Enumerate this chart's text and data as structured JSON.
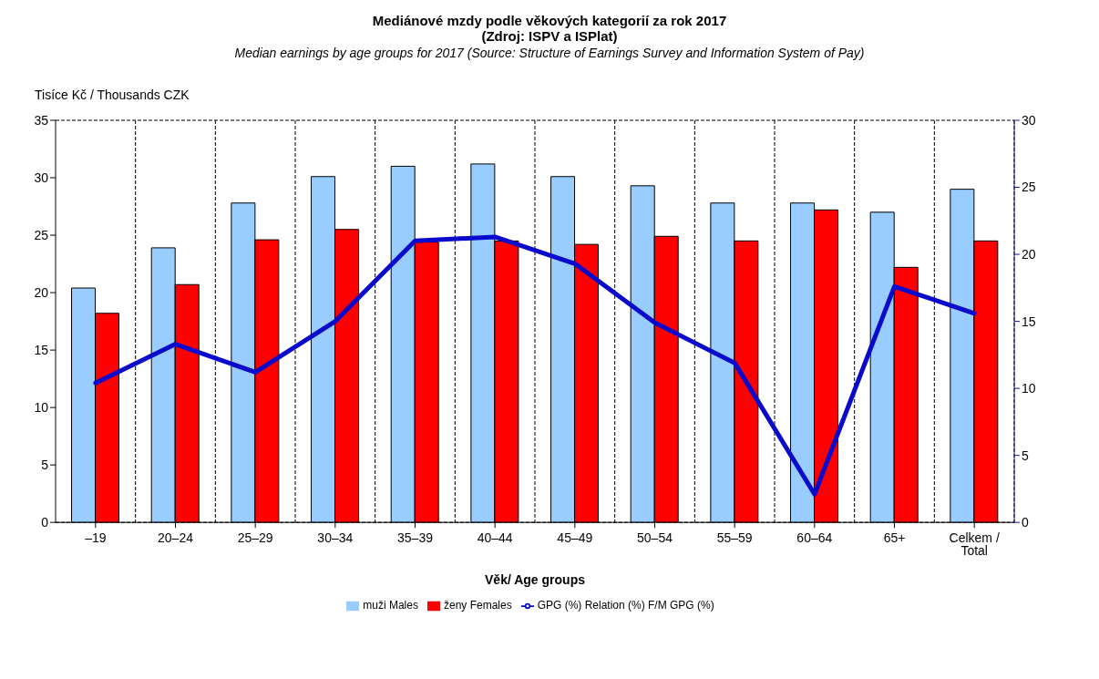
{
  "chart_data": {
    "type": "bar",
    "title": "Mediánové mzdy podle věkových kategorií za rok 2017\n(Zdroj: ISPV a ISPlat)",
    "subtitle": "Median earnings by age groups for 2017 (Source: Structure of Earnings Survey and Information System of Pay)",
    "ylabel": "Tisíce Kč / Thousands CZK",
    "xlabel": "Věk/ Age groups",
    "categories": [
      "–19",
      "20–24",
      "25–29",
      "30–34",
      "35–39",
      "40–44",
      "45–49",
      "50–54",
      "55–59",
      "60–64",
      "65+",
      "Celkem / Total"
    ],
    "series": [
      {
        "name": "muži Males",
        "color": "#99ccff",
        "values": [
          20.4,
          23.9,
          27.8,
          30.1,
          31.0,
          31.2,
          30.1,
          29.3,
          27.8,
          27.8,
          27.0,
          29.0
        ]
      },
      {
        "name": "ženy Females",
        "color": "#ff0000",
        "values": [
          18.2,
          20.7,
          24.6,
          25.5,
          24.4,
          24.5,
          24.2,
          24.9,
          24.5,
          27.2,
          22.2,
          24.5
        ]
      },
      {
        "name": "GPG (%) Relation (%) F/M  GPG (%)",
        "type": "line",
        "axis": "y2",
        "color": "#0a0acc",
        "values": [
          10.4,
          13.3,
          11.2,
          15.0,
          21.0,
          21.3,
          19.3,
          14.9,
          11.9,
          2.1,
          17.6,
          15.6
        ]
      }
    ],
    "ylim": [
      0,
      35
    ],
    "yticks": [
      0,
      5,
      10,
      15,
      20,
      25,
      30,
      35
    ],
    "y2lim": [
      0,
      30
    ],
    "y2ticks": [
      0,
      5,
      10,
      15,
      20,
      25,
      30
    ],
    "grid": true,
    "legend": "bottom",
    "marker": "none",
    "line_style": "solid"
  }
}
